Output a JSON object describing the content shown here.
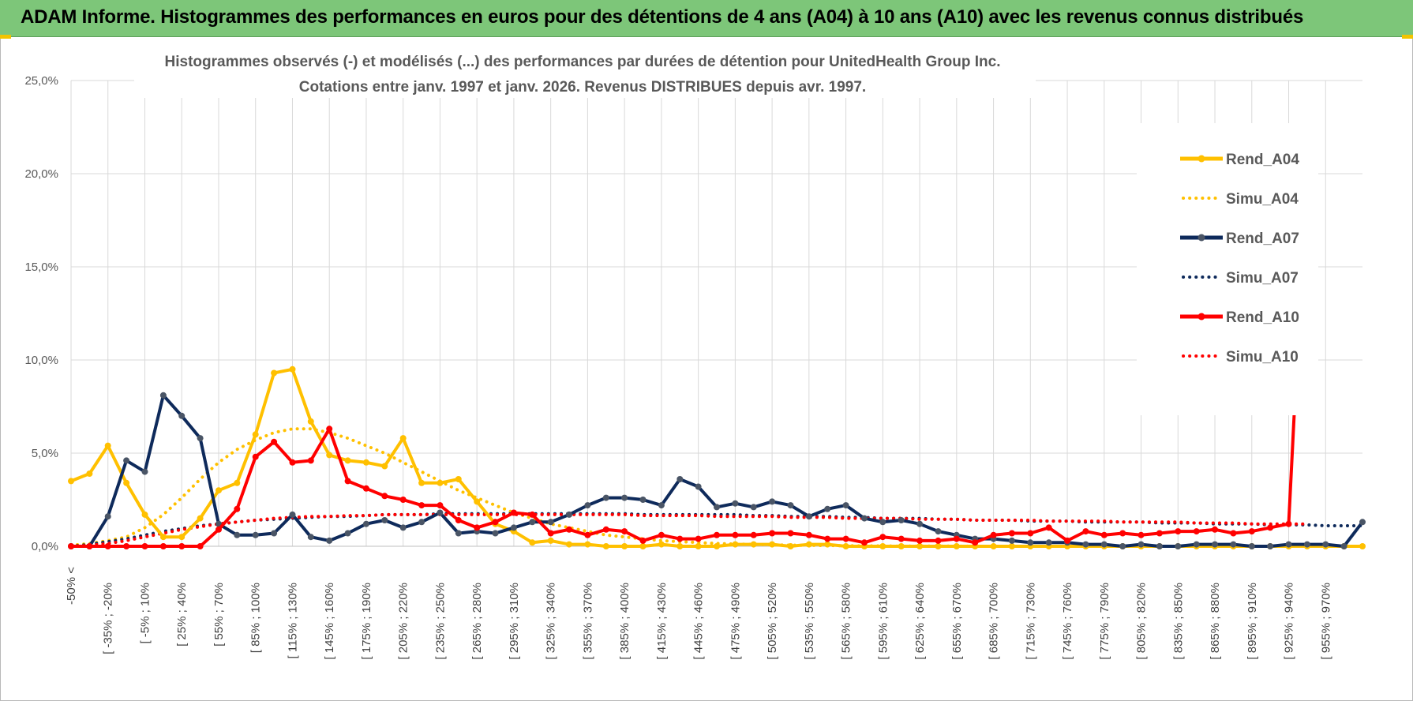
{
  "banner": {
    "title": "ADAM Informe. Histogrammes des performances en euros pour des détentions de 4 ans (A04) à 10 ans (A10) avec les revenus connus distribués"
  },
  "colors": {
    "banner_bg": "#7dc679",
    "A04": "#ffc000",
    "A07": "#0e2a5b",
    "A07_marker": "#4a5566",
    "A10": "#ff0000",
    "grid": "#d9d9d9"
  },
  "chart_data": {
    "type": "line",
    "title_lines": [
      "Histogrammes observés (-) et modélisés (...) des performances par durées de détention pour UnitedHealth Group Inc.",
      "Cotations entre janv. 1997 et janv. 2026. Revenus DISTRIBUES depuis avr. 1997."
    ],
    "ylim": [
      0,
      25
    ],
    "y_ticks": [
      "0,0%",
      "5,0%",
      "10,0%",
      "15,0%",
      "20,0%",
      "25,0%"
    ],
    "y_tick_values": [
      0,
      5,
      10,
      15,
      20,
      25
    ],
    "grid": true,
    "legend_position": "right",
    "x_tick_labels": [
      "-50% <",
      "[ -35% ; -20%",
      "[ -5% ; 10%",
      "[ 25% ; 40%",
      "[ 55% ; 70%",
      "[ 85% ; 100%",
      "[ 115% ; 130%",
      "[ 145% ; 160%",
      "[ 175% ; 190%",
      "[ 205% ; 220%",
      "[ 235% ; 250%",
      "[ 265% ; 280%",
      "[ 295% ; 310%",
      "[ 325% ; 340%",
      "[ 355% ; 370%",
      "[ 385% ; 400%",
      "[ 415% ; 430%",
      "[ 445% ; 460%",
      "[ 475% ; 490%",
      "[ 505% ; 520%",
      "[ 535% ; 550%",
      "[ 565% ; 580%",
      "[ 595% ; 610%",
      "[ 625% ; 640%",
      "[ 655% ; 670%",
      "[ 685% ; 700%",
      "[ 715% ; 730%",
      "[ 745% ; 760%",
      "[ 775% ; 790%",
      "[ 805% ; 820%",
      "[ 835% ; 850%",
      "[ 865% ; 880%",
      "[ 895% ; 910%",
      "[ 925% ; 940%",
      "[ 955% ; 970%"
    ],
    "series": [
      {
        "name": "Rend_A04",
        "style": "solid",
        "color": "#ffc000",
        "marker": "#ffc000",
        "values": [
          3.5,
          3.9,
          5.4,
          3.4,
          1.7,
          0.5,
          0.5,
          1.5,
          3.0,
          3.4,
          6.0,
          9.3,
          9.5,
          6.7,
          4.9,
          4.6,
          4.5,
          4.3,
          5.8,
          3.4,
          3.4,
          3.6,
          2.4,
          1.2,
          0.8,
          0.2,
          0.3,
          0.1,
          0.1,
          0.0,
          0.0,
          0.0,
          0.1,
          0.0,
          0.0,
          0.0,
          0.1,
          0.1,
          0.1,
          0.0,
          0.1,
          0.1,
          0.0,
          0.0,
          0.0,
          0.0,
          0.0,
          0.0,
          0.0,
          0.0,
          0.0,
          0.0,
          0.0,
          0.0,
          0.0,
          0.0,
          0.0,
          0.0,
          0.0,
          0.0,
          0.0,
          0.0,
          0.0,
          0.0,
          0.0,
          0.0,
          0.0,
          0.0,
          0.0,
          0.0,
          0.0
        ]
      },
      {
        "name": "Simu_A04",
        "style": "dotted",
        "color": "#ffc000",
        "values": [
          0.05,
          0.15,
          0.3,
          0.5,
          1.0,
          1.7,
          2.6,
          3.6,
          4.5,
          5.2,
          5.7,
          6.1,
          6.3,
          6.3,
          6.1,
          5.8,
          5.4,
          5.0,
          4.5,
          4.0,
          3.5,
          3.0,
          2.6,
          2.2,
          1.8,
          1.5,
          1.2,
          1.0,
          0.8,
          0.6,
          0.5,
          0.4,
          0.3,
          0.25,
          0.2,
          0.15,
          0.12,
          0.1,
          0.08,
          0.06,
          0.05,
          0.04,
          0.03,
          0.02,
          0.02,
          0.01,
          0.01,
          0.01,
          0.01,
          0.0,
          0.0,
          0.0,
          0.0,
          0.0,
          0.0,
          0.0,
          0.0,
          0.0,
          0.0,
          0.0,
          0.0,
          0.0,
          0.0,
          0.0,
          0.0,
          0.0,
          0.0,
          0.0,
          0.0,
          0.0,
          0.0
        ]
      },
      {
        "name": "Rend_A07",
        "style": "solid",
        "color": "#0e2a5b",
        "marker": "#4a5566",
        "values": [
          0.0,
          0.0,
          1.6,
          4.6,
          4.0,
          8.1,
          7.0,
          5.8,
          1.2,
          0.6,
          0.6,
          0.7,
          1.7,
          0.5,
          0.3,
          0.7,
          1.2,
          1.4,
          1.0,
          1.3,
          1.8,
          0.7,
          0.8,
          0.7,
          1.0,
          1.3,
          1.3,
          1.7,
          2.2,
          2.6,
          2.6,
          2.5,
          2.2,
          3.6,
          3.2,
          2.1,
          2.3,
          2.1,
          2.4,
          2.2,
          1.6,
          2.0,
          2.2,
          1.5,
          1.3,
          1.4,
          1.2,
          0.8,
          0.6,
          0.4,
          0.4,
          0.3,
          0.2,
          0.2,
          0.2,
          0.1,
          0.1,
          0.0,
          0.1,
          0.0,
          0.0,
          0.1,
          0.1,
          0.1,
          0.0,
          0.0,
          0.1,
          0.1,
          0.1,
          0.0,
          1.3
        ]
      },
      {
        "name": "Simu_A07",
        "style": "dotted",
        "color": "#0e2a5b",
        "values": [
          0.0,
          0.1,
          0.25,
          0.4,
          0.6,
          0.8,
          0.95,
          1.1,
          1.2,
          1.3,
          1.4,
          1.45,
          1.5,
          1.55,
          1.6,
          1.6,
          1.65,
          1.7,
          1.7,
          1.7,
          1.75,
          1.75,
          1.75,
          1.75,
          1.75,
          1.75,
          1.75,
          1.75,
          1.75,
          1.75,
          1.75,
          1.7,
          1.7,
          1.7,
          1.7,
          1.7,
          1.7,
          1.65,
          1.65,
          1.6,
          1.6,
          1.6,
          1.55,
          1.55,
          1.5,
          1.5,
          1.5,
          1.45,
          1.45,
          1.4,
          1.4,
          1.4,
          1.35,
          1.35,
          1.35,
          1.3,
          1.3,
          1.3,
          1.3,
          1.25,
          1.25,
          1.25,
          1.2,
          1.2,
          1.2,
          1.15,
          1.15,
          1.15,
          1.1,
          1.1,
          1.1
        ]
      },
      {
        "name": "Rend_A10",
        "style": "solid",
        "color": "#ff0000",
        "marker": "#ff0000",
        "values": [
          0.0,
          0.0,
          0.0,
          0.0,
          0.0,
          0.0,
          0.0,
          0.0,
          0.9,
          2.0,
          4.8,
          5.6,
          4.5,
          4.6,
          6.3,
          3.5,
          3.1,
          2.7,
          2.5,
          2.2,
          2.2,
          1.4,
          1.0,
          1.3,
          1.8,
          1.7,
          0.7,
          0.9,
          0.6,
          0.9,
          0.8,
          0.3,
          0.6,
          0.4,
          0.4,
          0.6,
          0.6,
          0.6,
          0.7,
          0.7,
          0.6,
          0.4,
          0.4,
          0.2,
          0.5,
          0.4,
          0.3,
          0.3,
          0.4,
          0.2,
          0.6,
          0.7,
          0.7,
          1.0,
          0.3,
          0.8,
          0.6,
          0.7,
          0.6,
          0.7,
          0.8,
          0.8,
          0.9,
          0.7,
          0.8,
          1.0,
          1.2,
          20.9
        ]
      },
      {
        "name": "Simu_A10",
        "style": "dotted",
        "color": "#ff0000",
        "values": [
          0.0,
          0.05,
          0.15,
          0.3,
          0.5,
          0.7,
          0.9,
          1.05,
          1.2,
          1.3,
          1.4,
          1.5,
          1.55,
          1.6,
          1.6,
          1.65,
          1.65,
          1.7,
          1.7,
          1.7,
          1.7,
          1.7,
          1.7,
          1.7,
          1.7,
          1.7,
          1.7,
          1.7,
          1.7,
          1.7,
          1.7,
          1.65,
          1.65,
          1.65,
          1.65,
          1.6,
          1.6,
          1.6,
          1.6,
          1.55,
          1.55,
          1.55,
          1.5,
          1.5,
          1.5,
          1.5,
          1.45,
          1.45,
          1.45,
          1.4,
          1.4,
          1.4,
          1.4,
          1.35,
          1.35,
          1.35,
          1.35,
          1.3,
          1.3,
          1.3,
          1.3,
          1.25,
          1.25,
          1.25,
          1.2,
          1.2,
          1.2,
          1.2
        ]
      }
    ]
  }
}
